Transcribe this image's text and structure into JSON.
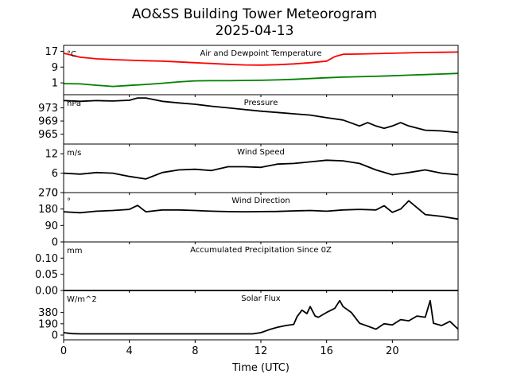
{
  "figure": {
    "title_line1": "AO&SS Building Tower Meteorogram",
    "title_line2": "2025-04-13",
    "xlabel": "Time (UTC)"
  },
  "chart_data": [
    {
      "type": "line",
      "title": "Air and Dewpoint Temperature",
      "unit": "°C",
      "ylim": [
        -5,
        20
      ],
      "yticks": [
        1,
        9,
        17
      ],
      "xlim": [
        0,
        24
      ],
      "xticks": [
        0,
        4,
        8,
        12,
        16,
        20
      ],
      "series": [
        {
          "color": "#ff0000",
          "x": [
            0,
            1,
            2,
            3,
            4,
            5,
            6,
            7,
            8,
            9,
            10,
            11,
            12,
            13,
            14,
            15,
            16,
            16.5,
            17,
            18,
            19,
            20,
            21,
            22,
            23,
            24
          ],
          "values": [
            16,
            14,
            13.2,
            12.8,
            12.5,
            12.2,
            12,
            11.6,
            11.2,
            10.8,
            10.4,
            10.1,
            10,
            10.2,
            10.6,
            11.2,
            12,
            14.3,
            15.5,
            15.6,
            15.8,
            16,
            16.2,
            16.4,
            16.5,
            16.6
          ]
        },
        {
          "color": "#008000",
          "x": [
            0,
            1,
            2,
            3,
            4,
            5,
            6,
            7,
            8,
            9,
            10,
            11,
            12,
            13,
            14,
            15,
            16,
            17,
            18,
            19,
            20,
            21,
            22,
            23,
            24
          ],
          "values": [
            0.6,
            0.5,
            -0.2,
            -0.8,
            -0.3,
            0.2,
            0.8,
            1.5,
            2.0,
            2.1,
            2.1,
            2.2,
            2.3,
            2.5,
            2.8,
            3.2,
            3.6,
            3.9,
            4.1,
            4.3,
            4.6,
            4.9,
            5.2,
            5.5,
            5.8
          ]
        }
      ]
    },
    {
      "type": "line",
      "title": "Pressure",
      "unit": "hPa",
      "ylim": [
        962,
        977
      ],
      "yticks": [
        965,
        969,
        973
      ],
      "xlim": [
        0,
        24
      ],
      "series": [
        {
          "color": "#000000",
          "x": [
            0,
            1,
            2,
            3,
            4,
            4.5,
            5,
            6,
            7,
            8,
            9,
            10,
            11,
            12,
            13,
            14,
            15,
            16,
            17,
            18,
            18.5,
            19,
            19.5,
            20,
            20.5,
            21,
            22,
            23,
            24
          ],
          "values": [
            975.2,
            975,
            975.2,
            975.1,
            975.3,
            976,
            976,
            975,
            974.5,
            974.1,
            973.5,
            973,
            972.5,
            972,
            971.6,
            971.2,
            970.8,
            970,
            969.3,
            967.5,
            968.5,
            967.5,
            966.8,
            967.5,
            968.5,
            967.5,
            966.2,
            966,
            965.5
          ]
        }
      ]
    },
    {
      "type": "line",
      "title": "Wind Speed",
      "unit": "m/s",
      "ylim": [
        0,
        15
      ],
      "yticks": [
        0,
        6,
        12
      ],
      "xlim": [
        0,
        24
      ],
      "series": [
        {
          "color": "#000000",
          "x": [
            0,
            1,
            2,
            3,
            4,
            5,
            6,
            7,
            8,
            9,
            10,
            11,
            12,
            13,
            14,
            15,
            16,
            17,
            18,
            19,
            20,
            21,
            22,
            23,
            24
          ],
          "values": [
            6,
            5.7,
            6.2,
            6,
            5,
            4.2,
            6.2,
            7,
            7.2,
            6.8,
            8,
            8,
            7.8,
            8.8,
            9,
            9.5,
            10,
            9.8,
            9,
            7,
            5.5,
            6.2,
            7,
            6,
            5.5
          ]
        }
      ]
    },
    {
      "type": "line",
      "title": "Wind Direction",
      "unit": "°",
      "ylim": [
        0,
        270
      ],
      "yticks": [
        0,
        90,
        180,
        270
      ],
      "xlim": [
        0,
        24
      ],
      "series": [
        {
          "color": "#000000",
          "x": [
            0,
            1,
            2,
            3,
            4,
            4.5,
            5,
            6,
            7,
            8,
            9,
            10,
            11,
            12,
            13,
            14,
            15,
            16,
            17,
            18,
            19,
            19.5,
            20,
            20.5,
            21,
            22,
            23,
            24
          ],
          "values": [
            165,
            160,
            168,
            172,
            178,
            200,
            165,
            175,
            175,
            172,
            168,
            166,
            165,
            166,
            167,
            170,
            172,
            168,
            175,
            178,
            175,
            198,
            162,
            180,
            225,
            150,
            140,
            125
          ]
        }
      ]
    },
    {
      "type": "line",
      "title": "Accumulated Precipitation Since 0Z",
      "unit": "mm",
      "ylim": [
        0,
        0.15
      ],
      "yticks": [
        0.0,
        0.05,
        0.1
      ],
      "xlim": [
        0,
        24
      ],
      "series": [
        {
          "color": "#000000",
          "x": [
            0,
            24
          ],
          "values": [
            0,
            0
          ]
        }
      ]
    },
    {
      "type": "line",
      "title": "Solar Flux",
      "unit": "W/m^2",
      "ylim": [
        -80,
        750
      ],
      "yticks": [
        0,
        190,
        380
      ],
      "xlim": [
        0,
        24
      ],
      "series": [
        {
          "color": "#000000",
          "x": [
            0,
            0.5,
            1,
            2,
            3,
            4,
            5,
            6,
            7,
            8,
            9,
            10,
            11,
            11.5,
            12,
            12.5,
            13,
            13.5,
            14,
            14.2,
            14.5,
            14.8,
            15,
            15.3,
            15.5,
            16,
            16.5,
            16.8,
            17,
            17.5,
            18,
            18.5,
            19,
            19.5,
            20,
            20.5,
            21,
            21.5,
            22,
            22.3,
            22.5,
            23,
            23.5,
            24
          ],
          "values": [
            40,
            25,
            20,
            20,
            20,
            20,
            20,
            20,
            20,
            20,
            20,
            20,
            20,
            20,
            40,
            90,
            130,
            160,
            180,
            310,
            420,
            360,
            480,
            320,
            300,
            380,
            450,
            580,
            480,
            380,
            200,
            150,
            100,
            190,
            170,
            260,
            240,
            320,
            300,
            580,
            200,
            160,
            230,
            100
          ]
        }
      ]
    }
  ]
}
